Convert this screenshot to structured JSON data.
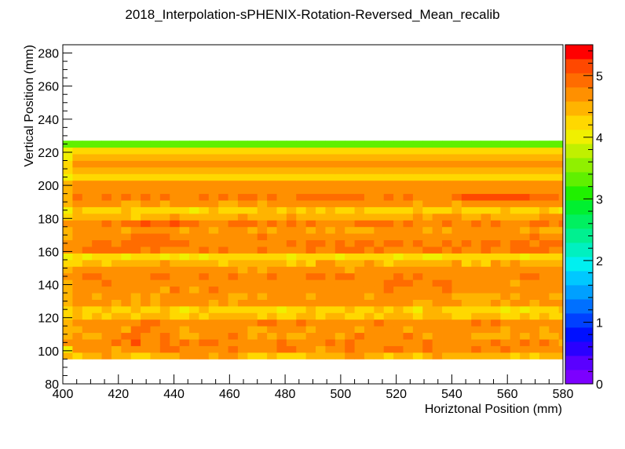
{
  "chart_data": {
    "type": "heatmap",
    "title": "2018_Interpolation-sPHENIX-Rotation-Reversed_Mean_recalib",
    "xlabel": "Horiztonal Position (mm)",
    "ylabel": "Vertical Position (mm)",
    "xlim": [
      400,
      580
    ],
    "ylim": [
      80,
      285
    ],
    "zlim": [
      0,
      5.5
    ],
    "x_ticks": [
      "400",
      "420",
      "440",
      "460",
      "480",
      "500",
      "520",
      "540",
      "560",
      "580"
    ],
    "y_ticks": [
      "80",
      "100",
      "120",
      "140",
      "160",
      "180",
      "200",
      "220",
      "240",
      "260",
      "280"
    ],
    "z_ticks": [
      "0",
      "1",
      "2",
      "3",
      "4",
      "5"
    ],
    "x_bin_start": 400,
    "x_bin_width": 3.5,
    "y_bin_start": 95,
    "y_bin_width": 4,
    "row_order": "bottom-to-top",
    "rows": [
      "4.5,4.3,4.5,4.5,4.7,4.5,4.5,4.3,4.3,4.5,4.5,4.5,4.7,4.7,4.7,4.5,4.7,4.7,4.5,4.3,4.3,4.5,4.3,4.3,4.3,4.5,4.5,4.5,4.5,4.7,4.7,4.5,4.5,4.3,4.5,4.5,4.3,4.5,4.7,4.5,4.5,4.5,4.5,4.5,4.5,4.5,4.3,4.5,4.3,4.5,4.5,4.5,4.5,4.3,4.5,4.5,4.5,4.5,4.3,4.5,4.5,4.5,4.3,4.7,4.3,4.5,4.7,4.3,4.5,4.5,4.5,4.3,4.5,4.5,4.5",
      "4.1,4.7,4.7,4.8,4.7,4.5,4.8,4.8,4.7,4.7,4.9,4.9,4.8,4.7,4.6,4.7,4.8,4.9,4.8,4.6,4.7,4.7,4.9,4.9,4.7,4.8,4.5,4.6,4.7,4.9,4.8,4.7,4.8,4.9,4.9,4.8,4.8,4.9,4.6,4.6,4.7,4.6,4.9,4.8,4.8,4.9,4.7,4.8,4.7,4.8,4.6,4.8,4.7,4.7,4.8,4.7,4.7,4.7,4.6,4.9,4.9,4.8,4.5,4.8,4.7,4.8,4.8,4.8,4.6,4.8,4.9,4.8,4.6,4.5,4.1",
      "4.6,4.6,4.7,4.7,4.8,4.9,4.6,5.2,4.8,4.7,4.9,4.7,4.9,4.7,4.9,4.9,4.7,4.8,4.8,4.8,4.7,4.8,5.0,4.8,4.6,4.8,4.8,4.9,4.8,4.9,4.8,4.7,4.7,4.6,4.8,4.8,4.7,5.0,4.7,4.8,4.8,4.6,4.8,4.6,4.9,4.6,4.6,4.9,4.8,4.9,4.7,4.5,4.8,4.6,4.6,4.7,4.8,4.9,4.6,4.7,4.6,4.5,4.7,4.6,4.7,4.8,4.6,4.9,4.8,4.6,4.7,4.8,4.9,4.8,4.4",
      "4.5,4.6,4.5,4.4,4.8,4.7,5.0,4.9,4.7,4.6,4.9,4.8,4.4,4.5,4.6,4.7,4.7,4.9,4.8,4.5,4.7,4.5,4.6,4.5,4.5,4.6,4.8,4.6,4.5,4.8,4.9,4.6,4.7,4.7,4.6,4.9,4.6,4.5,4.8,4.6,4.7,4.7,4.5,4.5,4.5,4.4,4.6,4.5,4.8,4.5,4.5,4.8,4.4,4.6,4.7,4.6,4.4,4.6,4.7,4.4,4.4,4.5,4.8,4.6,4.7,4.6,4.6,4.7,4.7,4.8,4.6,4.5,4.5,4.6,4.5",
      "4.4,4.5,4.7,4.8,4.6,4.7,4.5,4.9,4.9,4.6,4.6,4.7,4.5,4.6,4.8,4.8,4.7,4.7,4.8,4.4,4.5,4.6,4.7,4.7,4.6,4.5,4.8,4.6,4.6,4.7,4.5,4.7,4.7,4.8,4.7,4.5,4.7,4.8,4.7,4.7,4.6,4.6,4.6,4.6,4.6,4.5,4.6,4.6,4.6,4.4,4.8,4.6,4.7,4.8,4.7,4.6,4.4,4.7,4.6,4.6,4.5,4.7,4.5,4.6,4.7,4.6,4.7,4.6,4.5,4.5,4.4,4.6,4.7,4.7,4.5",
      "4.5,4.8,4.8,4.7,4.6,4.7,4.8,4.8,4.9,4.9,4.8,4.8,4.8,4.8,4.6,4.8,4.7,4.6,4.8,4.8,4.9,4.9,4.7,4.8,4.9,4.7,4.8,4.6,4.8,4.6,4.6,4.8,4.9,4.7,4.7,4.8,4.8,4.6,4.6,4.7,4.7,4.6,4.9,4.7,4.9,4.6,4.6,4.8,4.6,4.6,4.8,4.8,4.8,4.8,4.6,4.7,4.7,4.7,4.7,4.8,4.7,4.7,4.8,4.6,4.9,4.7,4.8,4.9,4.6,4.8,4.9,4.7,4.6,4.7,4.5",
      "4.3,4.4,4.2,4.4,4.3,4.5,4.5,4.2,4.4,4.5,4.4,4.3,4.2,4.4,4.3,4.4,4.4,4.4,4.4,4.5,4.3,4.4,4.3,4.2,4.4,4.4,4.3,4.4,4.4,4.2,4.3,4.4,4.2,4.4,4.4,4.4,4.2,4.5,4.5,4.5,4.3,4.2,4.4,4.4,4.5,4.3,4.3,4.4,4.2,4.4,4.2,4.3,4.5,4.5,4.4,4.5,4.3,4.5,4.5,4.4,4.2,4.3,4.3,4.4,4.4,4.2,4.4,4.5,4.5,4.3,4.5,4.4,4.4,4.2,4.2",
      "4.2,4.4,4.3,4.3,4.4,4.3,4.3,4.4,4.3,4.2,4.4,4.3,4.1,4.3,4.4,4.3,4.3,4.3,4.2,4.3,4.3,4.3,4.1,4.3,4.2,4.4,4.2,4.3,4.3,4.4,4.3,4.3,4.4,4.2,4.4,4.2,4.1,4.4,4.4,4.3,4.2,4.3,4.3,4.3,4.3,4.1,4.3,4.1,4.3,4.3,4.3,4.4,4.1,4.3,4.4,4.3,4.3,4.2,4.3,4.3,4.3,4.3,4.4,4.3,4.2,4.4,4.3,4.3,4.1,4.3,4.3,4.1,4.4,4.4,4.2",
      "4.5,4.7,4.7,4.6,4.6,4.5,4.7,4.5,4.6,4.5,4.7,4.7,4.7,4.8,4.7,4.5,4.6,4.5,4.6,4.7,4.7,4.8,4.6,4.6,4.6,4.7,4.8,4.8,4.8,4.8,4.7,4.6,4.7,4.6,4.8,4.6,4.5,4.5,4.7,4.7,4.6,4.5,4.5,4.5,4.7,4.5,4.7,4.7,4.5,4.7,4.7,4.7,4.8,4.8,4.7,4.5,4.7,4.7,4.8,4.6,4.6,4.5,4.7,4.7,4.6,4.7,4.5,4.6,4.5,4.5,4.6,4.6,4.6,4.6,4.5",
      "4.4,4.6,4.6,4.5,4.6,4.6,4.6,4.5,4.6,4.5,4.6,4.7,4.6,4.8,4.6,4.7,4.6,4.5,4.4,4.7,4.5,4.6,4.7,4.6,4.8,4.4,4.7,4.6,4.6,4.8,4.6,4.5,4.8,4.8,4.7,4.6,4.7,4.6,4.6,4.8,4.5,4.5,4.4,4.5,4.5,4.6,4.5,4.6,4.7,4.7,4.4,4.5,4.8,4.5,4.7,4.6,4.5,4.8,4.6,4.6,4.5,4.7,4.6,4.5,4.7,4.5,4.7,4.6,4.5,4.5,4.8,4.5,4.5,4.4,4.4",
      "4.5,4.7,4.7,4.8,4.7,4.6,4.8,4.7,4.8,4.8,4.5,4.9,4.8,4.5,4.8,4.9,4.6,4.8,4.8,4.7,4.6,4.7,4.6,4.8,4.8,4.8,4.6,4.8,4.7,4.8,4.6,4.6,4.8,4.9,4.8,4.7,4.6,4.8,4.8,4.9,4.8,4.8,4.7,4.8,4.8,4.8,4.8,4.7,4.7,4.7,4.6,4.8,4.8,4.6,4.6,4.8,4.6,4.7,4.8,4.6,4.6,4.8,4.8,4.7,4.6,4.9,4.6,4.7,4.6,4.7,4.6,4.6,4.6,4.6,4.5",
      "4.5,4.8,4.8,4.7,4.9,4.8,4.8,4.6,4.8,4.8,4.7,4.6,4.7,4.7,4.8,4.7,4.6,4.8,4.8,4.8,4.7,4.6,4.8,4.8,4.8,4.6,4.7,4.8,4.7,4.8,4.7,4.8,4.8,4.9,5.0,5.0,4.8,4.8,5.0,4.9,4.8,4.8,4.8,4.7,4.8,4.7,4.5,4.7,4.8,4.7,4.8,4.7,4.8,4.8,4.7,4.7,4.6,4.7,4.8,4.6,4.7,4.7,4.7,4.8,4.6,4.7,4.7,4.8,4.7,4.8,4.7,4.7,4.7,4.8,4.5",
      "4.6,4.8,4.9,4.9,4.8,4.8,4.7,4.6,4.8,4.9,4.9,4.6,4.7,4.6,4.9,4.6,4.8,4.9,4.7,4.7,4.7,4.9,4.8,4.8,4.8,4.9,4.9,4.7,4.9,4.9,4.7,4.8,4.7,4.6,4.9,4.7,4.9,4.7,4.7,4.7,4.8,4.8,4.7,4.8,4.7,4.8,4.7,4.9,4.9,4.6,4.7,4.8,4.8,4.9,4.7,4.6,4.6,4.8,4.6,4.7,4.6,4.6,4.7,4.7,4.8,4.9,4.9,4.8,4.8,4.7,4.9,4.8,4.9,4.9,4.5",
      "4.5,4.8,4.7,4.7,4.8,4.6,4.7,4.7,4.6,4.8,4.8,4.8,4.8,4.8,4.7,4.7,4.7,4.6,4.5,4.6,4.5,4.8,4.7,4.8,4.8,4.7,4.6,4.6,4.6,4.5,4.7,4.7,4.8,4.8,4.7,4.7,4.6,4.8,4.6,4.7,4.7,4.8,4.6,4.7,4.6,4.6,4.7,4.7,4.6,4.7,4.6,4.6,4.7,4.8,4.8,4.7,4.7,4.7,4.7,4.7,4.8,4.8,4.8,4.5,4.7,4.8,4.5,4.5,4.8,4.6,4.6,4.7,4.7,4.8,4.5",
      "4.3,4.3,4.4,4.5,4.3,4.4,4.4,4.4,4.4,4.5,4.6,4.4,4.4,4.4,4.5,4.4,4.3,4.4,4.4,4.4,4.5,4.4,4.5,4.3,4.4,4.3,4.6,4.6,4.4,4.5,4.4,4.6,4.5,4.3,4.5,4.4,4.4,4.4,4.5,4.5,4.6,4.3,4.5,4.3,4.6,4.5,4.6,4.4,4.5,4.4,4.5,4.4,4.5,4.4,4.4,4.5,4.5,4.5,4.6,4.4,4.3,4.5,4.3,4.4,4.5,4.3,4.4,4.3,4.3,4.5,4.6,4.4,4.5,4.3,4.2",
      "4.1,4.2,4.1,4.3,4.2,4.2,4.1,4.2,4.3,4.3,4.1,4.3,4.1,4.2,4.1,4.2,4.3,4.3,4.2,4.3,4.2,4.2,4.2,4.1,4.2,4.3,4.2,4.3,4.1,4.3,4.2,4.2,4.3,4.3,4.1,4.3,4.3,4.1,4.1,4.2,4.2,4.3,4.3,4.2,4.3,4.2,4.2,4.1,4.3,4.3,4.2,4.2,4.3,4.1,4.3,4.2,4.1,4.1,4.2,4.1,4.1,4.3,4.2,4.2,4.3,4.1,4.2,4.2,4.2,4.2,4.2,4.2,4.1,4.3,4.1",
      "4.6,4.8,4.9,5.0,5.0,4.9,4.9,5.0,4.8,4.9,4.8,4.8,4.8,4.8,4.9,4.7,4.9,4.8,4.7,4.8,4.9,4.7,4.8,4.8,4.8,4.9,4.8,4.8,4.9,5.0,4.9,4.8,4.9,4.7,4.7,4.8,4.7,4.9,4.9,4.8,4.9,4.7,4.8,4.9,4.8,4.8,4.9,4.9,4.9,5.0,4.8,4.7,4.8,4.8,4.9,4.9,4.8,4.8,4.8,4.9,4.8,5.0,4.8,4.9,4.8,4.8,4.9,4.9,4.9,4.9,5.2,4.9,4.9,4.9,4.6",
      "4.6,4.8,4.8,4.9,5.0,4.8,4.9,5.0,5.0,5.0,5.0,4.9,4.9,4.7,4.8,4.8,4.8,4.8,4.8,4.8,4.8,4.7,4.8,4.9,4.8,4.9,4.9,4.8,4.9,4.8,4.9,4.9,4.8,4.9,4.9,4.8,4.9,4.8,4.8,5.0,4.8,4.9,4.7,4.9,5.0,4.8,4.9,5.0,4.8,4.9,4.9,4.9,4.8,4.8,4.8,4.8,4.9,4.9,5.0,4.9,5.0,5.0,4.8,4.9,4.8,4.8,5.0,5.0,4.9,4.9,5.2,4.9,4.8,4.8,4.6",
      "4.5,4.6,4.8,4.8,4.8,4.7,4.8,4.9,4.9,4.9,4.9,4.7,4.8,4.7,4.7,4.7,4.6,4.6,4.8,4.6,4.9,4.8,4.8,4.8,4.8,4.7,4.7,4.6,4.6,4.8,4.8,4.8,4.6,4.8,4.8,4.8,4.8,4.6,4.6,4.8,4.8,4.8,4.7,4.8,4.7,4.8,4.6,4.8,4.9,4.8,4.8,4.8,4.6,4.8,4.7,4.8,4.7,4.9,4.9,4.9,4.8,4.9,4.9,4.8,4.8,4.6,4.7,4.8,4.8,4.9,5.2,5.0,4.8,4.8,4.5",
      "4.4,4.7,4.6,4.6,4.7,4.7,4.5,4.6,4.7,4.6,4.6,4.6,4.5,4.6,4.6,4.5,4.7,4.7,4.6,4.5,4.7,4.5,4.6,4.6,4.6,4.5,4.6,4.5,4.6,4.5,4.5,4.5,4.6,4.7,4.7,4.6,4.7,4.5,4.7,4.5,4.6,4.6,4.7,4.6,4.6,4.6,4.6,4.5,4.6,4.5,4.5,4.5,4.6,4.5,4.7,4.6,4.7,4.7,4.6,4.6,4.7,4.7,4.6,4.6,4.7,4.6,4.6,4.7,4.6,4.6,4.7,4.5,4.6,4.5,4.4",
      "4.6,4.8,4.8,4.8,4.9,4.8,4.9,4.9,5.2,4.9,4.9,5.2,4.9,4.9,4.8,4.8,4.8,4.9,4.9,4.9,4.8,4.9,4.7,4.9,4.8,4.9,4.8,4.8,4.8,4.8,4.9,4.9,4.9,4.9,4.8,4.9,4.8,4.8,4.8,4.9,4.8,4.8,4.9,4.8,4.9,4.8,4.8,4.7,4.9,4.9,4.8,4.9,4.9,4.8,4.9,4.9,4.8,4.9,4.8,4.9,4.9,4.9,4.8,4.8,4.9,5.2,5.2,5.2,5.2,5.2,5.2,5.2,5.0,4.9,4.6",
      "4.3,4.4,4.5,4.5,4.5,4.4,4.4,4.3,4.5,4.4,4.5,4.6,4.4,4.4,4.5,4.5,4.4,4.4,4.6,4.4,4.5,4.5,4.5,4.6,4.4,4.5,4.5,4.5,4.4,4.5,4.5,4.4,4.4,4.5,4.5,4.4,4.6,4.5,4.6,4.6,4.6,4.4,4.4,4.6,4.4,4.4,4.4,4.5,4.5,4.6,4.6,4.6,4.6,4.4,4.6,4.5,4.6,4.4,4.5,4.6,4.5,4.6,4.5,4.5,4.6,4.4,4.4,4.4,4.4,4.6,4.4,4.6,4.4,4.5,4.3",
      "4.1,4.4,4.3,4.3,4.2,4.3,4.4,4.3,4.2,4.2,4.3,4.2,4.3,4.1,4.2,4.4,4.3,4.3,4.3,4.2,4.4,4.4,4.2,4.4,4.3,4.4,4.3,4.4,4.3,4.3,4.4,4.2,4.3,4.2,4.2,4.2,4.4,4.3,4.3,4.3,4.4,4.2,4.3,4.3,4.2,4.4,4.2,4.3,4.3,4.4,4.3,4.1,4.2,4.2,4.2,4.3,4.3,4.3,4.2,4.2,4.3,4.4,4.3,4.3,4.4,4.3,4.2,4.3,4.3,4.4,4.3,4.4,4.4,4.4,4.1",
      "4.4,4.6,4.7,4.6,4.6,4.6,4.5,4.5,4.6,4.6,4.5,4.6,4.6,4.6,4.6,4.6,4.5,4.5,4.6,4.6,4.5,4.7,4.6,4.6,4.6,4.6,4.6,4.6,4.6,4.6,4.6,4.6,4.6,4.6,4.6,4.6,4.5,4.6,4.6,4.6,4.5,4.6,4.6,4.6,4.6,4.6,4.6,4.6,4.6,4.6,4.6,4.6,4.7,4.6,4.5,4.6,4.6,4.6,4.6,4.6,4.6,4.6,4.6,4.6,4.5,4.6,4.6,4.6,4.6,4.6,4.6,4.6,4.6,4.6,4.4",
      "4.5,4.9,4.8,4.8,4.9,4.8,4.9,4.8,4.9,4.8,4.9,4.8,4.8,4.8,4.9,4.8,4.9,4.8,4.9,4.9,4.8,4.9,4.8,4.8,4.9,4.9,4.9,4.9,4.9,4.9,4.9,4.8,4.8,4.9,4.8,4.9,4.8,4.8,4.8,4.8,4.9,5.2,5.2,5.2,5.2,5.2,5.2,5.2,4.9,4.9,4.9,4.8,4.9,4.8,4.8,4.9,4.9,4.8,4.9,4.8,4.9,4.8,4.9,4.8,4.8,4.9,4.9,4.8,4.8,4.9,4.9,4.9,4.9,4.8,4.5",
      "4.5,4.8,4.8,4.7,4.8,4.8,4.8,4.7,4.7,4.8,4.8,4.7,4.8,4.8,4.8,4.8,4.7,4.8,4.8,4.8,4.8,4.8,4.8,4.8,4.8,4.8,4.7,4.8,4.7,4.7,4.7,4.7,4.7,4.8,4.8,4.8,4.8,4.7,4.8,4.8,4.8,4.8,4.7,4.8,4.8,4.8,4.8,4.8,4.7,4.8,4.7,4.8,4.8,4.8,4.8,4.8,4.8,4.7,4.7,4.8,4.8,4.7,4.8,4.8,4.7,4.8,4.8,4.8,4.7,4.7,4.7,4.8,4.7,4.8,4.5",
      "4.5,4.6,4.6,4.6,4.6,4.6,4.6,4.6,4.6,4.6,4.7,4.6,4.6,4.6,4.7,4.6,4.6,4.6,4.6,4.7,4.6,4.6,4.6,4.6,4.6,4.6,4.6,4.6,4.6,4.6,4.6,4.6,4.6,4.6,4.6,4.6,4.6,4.6,4.6,4.6,4.6,4.6,4.6,4.6,4.6,4.7,4.6,4.6,4.6,4.6,4.6,4.6,4.6,4.6,4.7,4.6,4.6,4.7,4.7,4.6,4.6,4.6,4.6,4.6,4.7,4.6,4.6,4.6,4.6,4.6,4.6,4.6,4.6,4.6,4.5",
      "4.0,4.3,4.2,4.2,4.3,4.3,4.2,4.2,4.3,4.2,4.2,4.2,4.3,4.2,4.2,4.2,4.2,4.2,4.3,4.2,4.2,4.2,4.3,4.2,4.2,4.2,4.2,4.3,4.2,4.2,4.2,4.2,4.2,4.2,4.2,4.2,4.2,4.2,4.2,4.2,4.2,4.3,4.2,4.2,4.2,4.2,4.2,4.2,4.2,4.2,4.2,4.2,4.2,4.2,4.2,4.2,4.2,4.3,4.2,4.3,4.2,4.2,4.2,4.2,4.2,4.2,4.2,4.3,4.2,4.2,4.2,4.2,4.2,4.2,4.0",
      "4.2,4.5,4.4,4.5,4.5,4.4,4.5,4.4,4.5,4.5,4.5,4.5,4.5,4.5,4.5,4.4,4.5,4.5,4.5,4.5,4.5,4.5,4.5,4.5,4.5,4.5,4.4,4.5,4.5,4.5,4.5,4.5,4.5,4.5,4.5,4.5,4.5,4.5,4.5,4.5,4.5,4.5,4.5,4.5,4.5,4.5,4.5,4.5,4.5,4.5,4.5,4.5,4.5,4.5,4.5,4.5,4.5,4.5,4.5,4.5,4.5,4.5,4.5,4.5,4.5,4.5,4.5,4.5,4.5,4.5,4.5,4.5,4.5,4.5,4.2",
      "4.3,4.8,4.8,4.8,4.8,4.8,4.8,4.8,4.8,4.8,4.8,4.8,4.8,4.8,4.8,4.8,4.8,4.8,4.8,4.8,4.8,4.8,4.8,4.8,4.8,4.8,4.8,4.8,4.8,4.8,4.8,4.8,4.8,4.8,4.8,4.8,4.8,4.8,4.8,4.8,4.8,4.8,4.8,4.8,4.8,4.8,4.8,4.8,4.8,4.8,4.8,4.8,4.8,4.8,4.8,4.8,4.8,4.8,4.8,4.8,4.8,4.8,4.8,4.8,4.8,4.8,4.8,4.8,4.8,4.8,4.8,4.8,4.8,4.8,4.3",
      "4.1,4.4,4.5,4.5,4.5,4.5,4.5,4.5,4.5,4.5,4.5,4.5,4.5,4.5,4.5,4.5,4.5,4.5,4.5,4.5,4.5,4.5,4.5,4.5,4.5,4.5,4.5,4.5,4.5,4.5,4.5,4.5,4.5,4.5,4.5,4.5,4.5,4.5,4.5,4.5,4.5,4.5,4.5,4.5,4.5,4.5,4.5,4.5,4.5,4.5,4.5,4.5,4.5,4.5,4.5,4.5,4.5,4.5,4.5,4.5,4.5,4.5,4.5,4.5,4.5,4.5,4.5,4.5,4.5,4.5,4.5,4.5,4.5,4.4,4.1",
      "4.0,4.2,4.2,4.2,4.3,4.3,4.3,4.3,4.3,4.3,4.3,4.3,4.3,4.3,4.3,4.3,4.3,4.3,4.3,4.3,4.3,4.3,4.3,4.3,4.3,4.3,4.3,4.3,4.3,4.3,4.3,4.3,4.3,4.3,4.3,4.3,4.3,4.3,4.3,4.3,4.3,4.3,4.3,4.3,4.3,4.3,4.3,4.3,4.3,4.3,4.3,4.3,4.3,4.3,4.3,4.3,4.3,4.3,4.3,4.3,4.3,4.3,4.3,4.3,4.3,4.3,4.3,4.3,4.3,4.3,4.3,4.3,4.2,4.2,4.0",
      "3.3,3.3,3.3,3.3,3.3,3.3,3.3,3.3,3.3,3.3,3.3,3.3,3.3,3.3,3.3,3.3,3.3,3.3,3.3,3.3,3.3,3.3,3.3,3.3,3.3,3.3,3.3,3.3,3.3,3.3,3.3,3.3,3.3,3.3,3.3,3.3,3.3,3.3,3.3,3.3,3.3,3.3,3.3,3.3,3.3,3.3,3.3,3.3,3.3,3.3,3.3,3.3,3.3,3.3,3.3,3.3,3.3,3.3,3.3,3.3,3.3,3.3,3.3,3.3,3.3,3.3,3.3,3.3,3.3,3.3,3.3,3.3,3.3,3.3,3.3"
    ]
  },
  "colors": {
    "palette": [
      "#7c00ff",
      "#5a00ff",
      "#2a00ff",
      "#0010ff",
      "#0040ff",
      "#0070ff",
      "#00a0ff",
      "#00c8ff",
      "#00f0f0",
      "#00f0c0",
      "#00f090",
      "#00f060",
      "#00f030",
      "#20f000",
      "#60f000",
      "#90f000",
      "#c0f000",
      "#f0f000",
      "#ffd800",
      "#ffb400",
      "#ff9000",
      "#ff6c00",
      "#ff4800",
      "#ff0000"
    ],
    "frame": "#000000"
  }
}
